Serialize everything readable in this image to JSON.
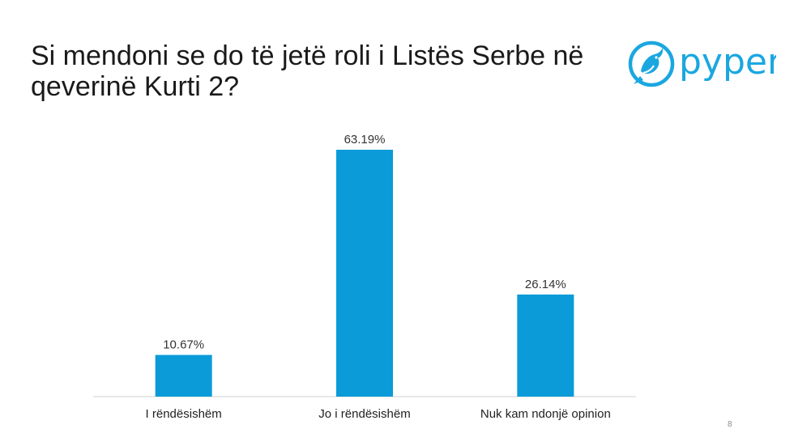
{
  "slide": {
    "title": "Si mendoni se do të jetë roli i Listës Serbe në qeverinë Kurti 2?",
    "page_number": "8"
  },
  "logo": {
    "text": "pyper",
    "icon": "bird-icon",
    "color": "#1aa7e0"
  },
  "colors": {
    "bar": "#0a9bd8",
    "axis": "#d0d0d0"
  },
  "chart_data": {
    "type": "bar",
    "title": "",
    "xlabel": "",
    "ylabel": "",
    "categories": [
      "I rëndësishëm",
      "Jo i rëndësishëm",
      "Nuk kam ndonjë opinion"
    ],
    "values": [
      10.67,
      63.19,
      26.14
    ],
    "labels": [
      "10.67%",
      "63.19%",
      "26.14%"
    ],
    "ylim": [
      0,
      63.19
    ],
    "grid": false,
    "legend": "none"
  }
}
